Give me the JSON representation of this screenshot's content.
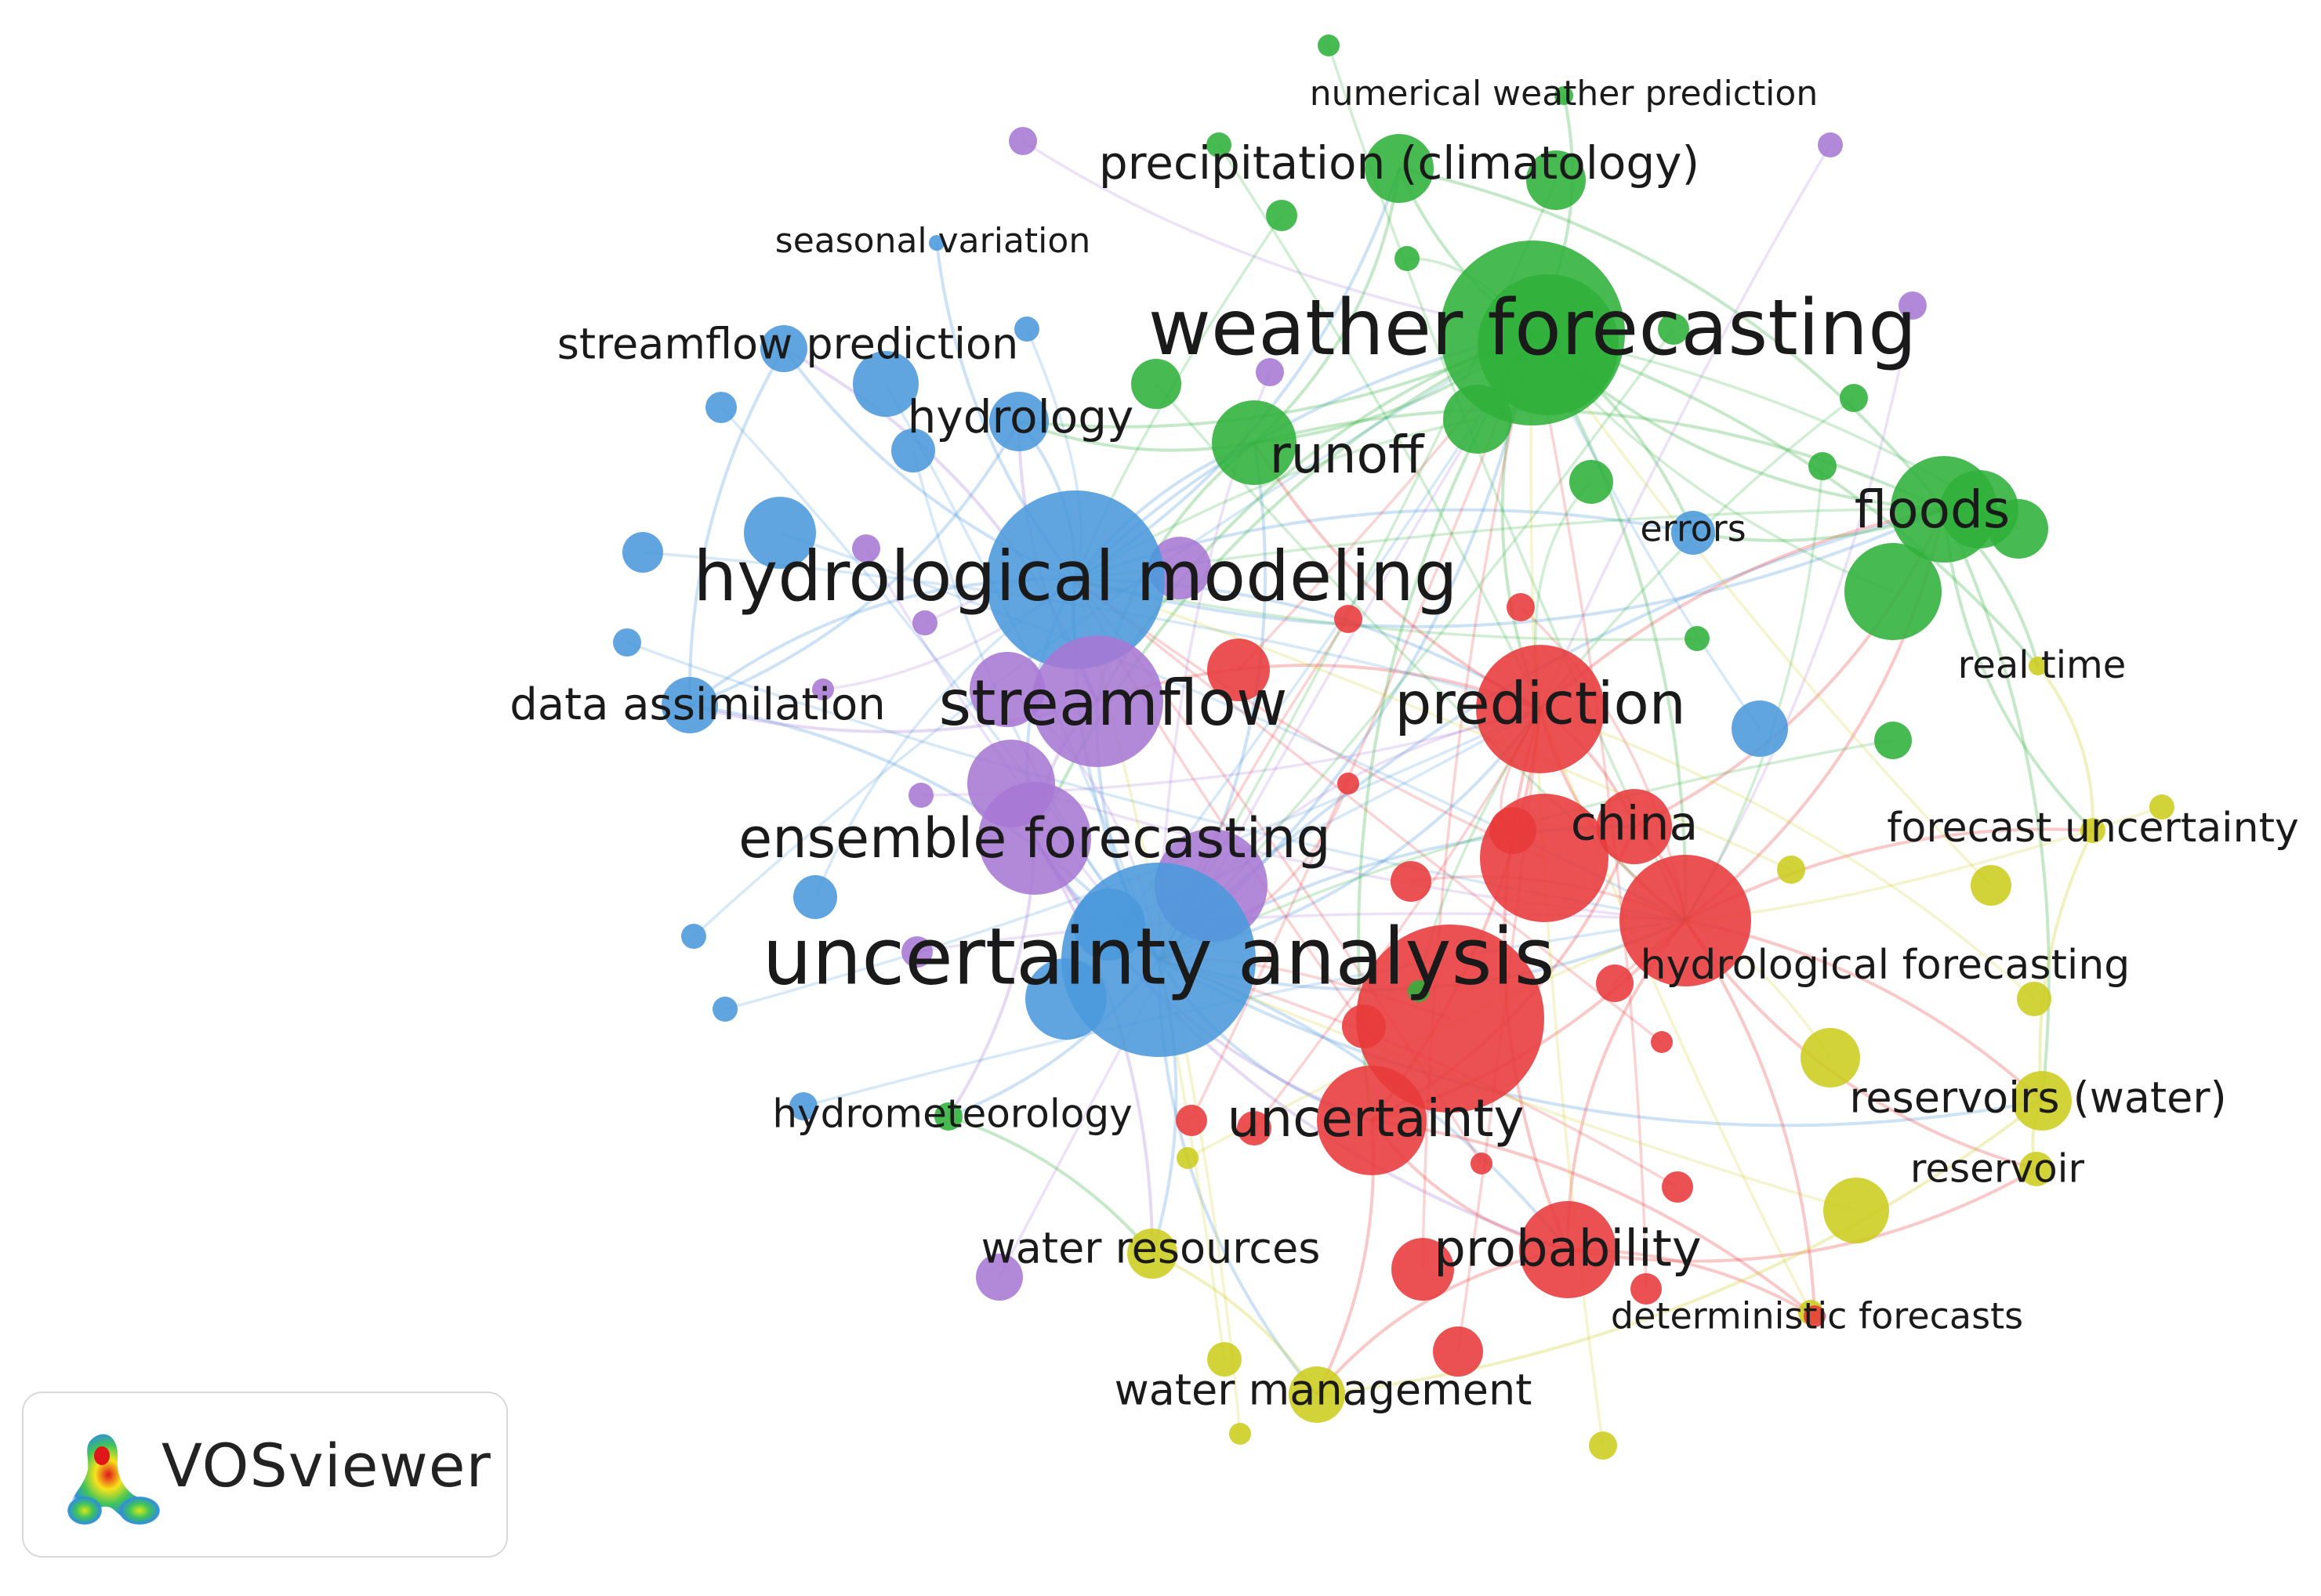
{
  "colors": {
    "red": "#e8393a",
    "green": "#2fb03a",
    "blue": "#4a98dc",
    "purple": "#a777d4",
    "yellow": "#cccc1e"
  },
  "brand": {
    "name": "VOSviewer",
    "logo_icon": "vosviewer-density-logo-icon"
  },
  "network": {
    "nodes": [
      {
        "id": "weather",
        "label": "weather forecasting",
        "cluster": "green",
        "weight": 90
      },
      {
        "id": "hydromod",
        "label": "hydrological modeling",
        "cluster": "blue",
        "weight": 80
      },
      {
        "id": "uncanal",
        "label": "uncertainty analysis",
        "cluster": "blue",
        "weight": 100
      },
      {
        "id": "streamflow",
        "label": "streamflow",
        "cluster": "purple",
        "weight": 50
      },
      {
        "id": "prediction",
        "label": "prediction",
        "cluster": "red",
        "weight": 48
      },
      {
        "id": "ensemble",
        "label": "ensemble forecasting",
        "cluster": "purple",
        "weight": 40
      },
      {
        "id": "runoff",
        "label": "runoff",
        "cluster": "green",
        "weight": 32
      },
      {
        "id": "floods",
        "label": "floods",
        "cluster": "green",
        "weight": 36
      },
      {
        "id": "precip",
        "label": "precipitation (climatology)",
        "cluster": "green",
        "weight": 26
      },
      {
        "id": "numerical",
        "label": "numerical weather prediction",
        "cluster": "green",
        "weight": 6
      },
      {
        "id": "seasonal",
        "label": "seasonal variation",
        "cluster": "blue",
        "weight": 6
      },
      {
        "id": "sfpred",
        "label": "streamflow prediction",
        "cluster": "blue",
        "weight": 12
      },
      {
        "id": "hydrology",
        "label": "hydrology",
        "cluster": "blue",
        "weight": 20
      },
      {
        "id": "dataassim",
        "label": "data assimilation",
        "cluster": "blue",
        "weight": 16
      },
      {
        "id": "errors",
        "label": "errors",
        "cluster": "blue",
        "weight": 12
      },
      {
        "id": "realtime",
        "label": "real time",
        "cluster": "yellow",
        "weight": 6
      },
      {
        "id": "china",
        "label": "china",
        "cluster": "red",
        "weight": 24
      },
      {
        "id": "forecastunc",
        "label": "forecast uncertainty",
        "cluster": "yellow",
        "weight": 10
      },
      {
        "id": "hydrofc",
        "label": "hydrological forecasting",
        "cluster": "red",
        "weight": 60
      },
      {
        "id": "uncertainty",
        "label": "uncertainty",
        "cluster": "red",
        "weight": 44
      },
      {
        "id": "reservoirsw",
        "label": "reservoirs (water)",
        "cluster": "yellow",
        "weight": 22
      },
      {
        "id": "reservoir",
        "label": "reservoir",
        "cluster": "yellow",
        "weight": 12
      },
      {
        "id": "hydromet",
        "label": "hydrometeorology",
        "cluster": "green",
        "weight": 10
      },
      {
        "id": "waterres",
        "label": "water resources",
        "cluster": "yellow",
        "weight": 14
      },
      {
        "id": "probability",
        "label": "probability",
        "cluster": "red",
        "weight": 30
      },
      {
        "id": "determ",
        "label": "deterministic forecasts",
        "cluster": "red",
        "weight": 8
      },
      {
        "id": "watermgmt",
        "label": "water management",
        "cluster": "yellow",
        "weight": 16
      }
    ]
  }
}
